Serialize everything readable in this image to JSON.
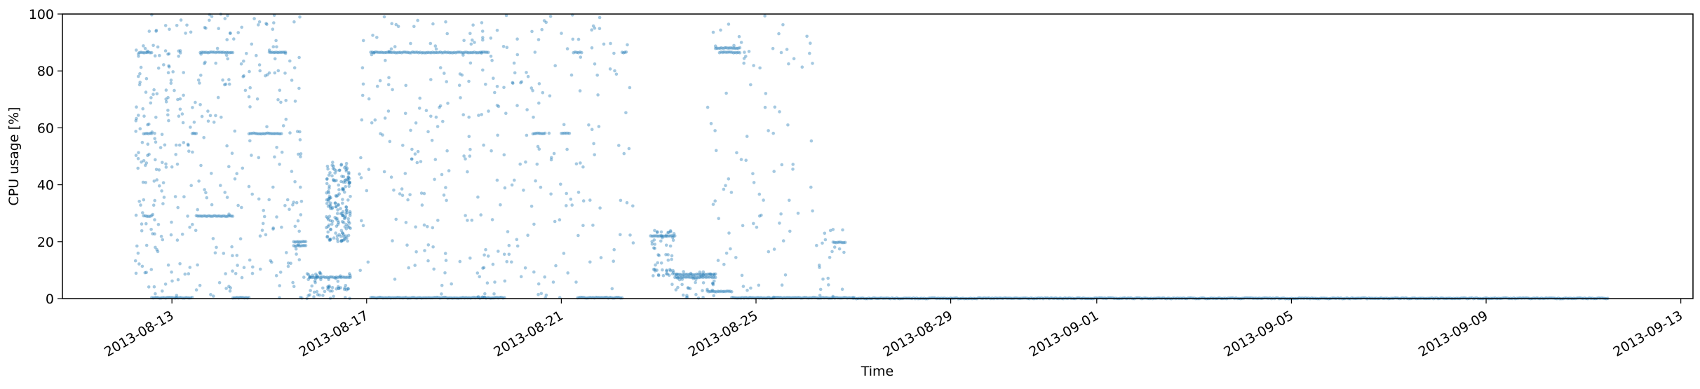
{
  "chart_data": {
    "type": "scatter",
    "title": "",
    "xlabel": "Time",
    "ylabel": "CPU usage [%]",
    "xlim": [
      "2013-08-10T18:00",
      "2013-09-13T06:00"
    ],
    "ylim": [
      0,
      100
    ],
    "x_ticks": [
      "2013-08-13",
      "2013-08-17",
      "2013-08-21",
      "2013-08-25",
      "2013-08-29",
      "2013-09-01",
      "2013-09-05",
      "2013-09-09",
      "2013-09-13"
    ],
    "y_ticks": [
      0,
      20,
      40,
      60,
      80,
      100
    ],
    "grid": false,
    "legend": "none",
    "marker_color": "#1f77b4",
    "marker_alpha": 0.4,
    "bands": [
      {
        "start": "2013-08-12T08:00",
        "end": "2013-08-12T14:00",
        "y": 86.5
      },
      {
        "start": "2013-08-12T10:00",
        "end": "2013-08-12T14:00",
        "y": 58
      },
      {
        "start": "2013-08-12T10:00",
        "end": "2013-08-12T14:00",
        "y": 29
      },
      {
        "start": "2013-08-12T14:00",
        "end": "2013-08-13T10:00",
        "y": 0.3
      },
      {
        "start": "2013-08-13T10:00",
        "end": "2013-08-13T12:00",
        "y": 58
      },
      {
        "start": "2013-08-13T14:00",
        "end": "2013-08-14T06:00",
        "y": 86.5
      },
      {
        "start": "2013-08-13T12:00",
        "end": "2013-08-14T06:00",
        "y": 29
      },
      {
        "start": "2013-08-14T06:00",
        "end": "2013-08-14T14:00",
        "y": 0.3
      },
      {
        "start": "2013-08-14T14:00",
        "end": "2013-08-15T06:00",
        "y": 58
      },
      {
        "start": "2013-08-15T00:00",
        "end": "2013-08-15T08:00",
        "y": 86.5
      },
      {
        "start": "2013-08-15T12:00",
        "end": "2013-08-15T18:00",
        "y": 20
      },
      {
        "start": "2013-08-15T12:00",
        "end": "2013-08-15T18:00",
        "y": 18.5
      },
      {
        "start": "2013-08-15T20:00",
        "end": "2013-08-16T16:00",
        "y": 7.5
      },
      {
        "start": "2013-08-17T02:00",
        "end": "2013-08-19T12:00",
        "y": 86.5
      },
      {
        "start": "2013-08-17T02:00",
        "end": "2013-08-19T20:00",
        "y": 0.3
      },
      {
        "start": "2013-08-20T10:00",
        "end": "2013-08-20T16:00",
        "y": 58
      },
      {
        "start": "2013-08-21T00:00",
        "end": "2013-08-21T04:00",
        "y": 58
      },
      {
        "start": "2013-08-21T06:00",
        "end": "2013-08-21T10:00",
        "y": 86.5
      },
      {
        "start": "2013-08-21T08:00",
        "end": "2013-08-22T06:00",
        "y": 0.3
      },
      {
        "start": "2013-08-22T06:00",
        "end": "2013-08-22T08:00",
        "y": 86.5
      },
      {
        "start": "2013-08-22T20:00",
        "end": "2013-08-23T08:00",
        "y": 22
      },
      {
        "start": "2013-08-23T08:00",
        "end": "2013-08-24T04:00",
        "y": 8.5
      },
      {
        "start": "2013-08-23T08:00",
        "end": "2013-08-24T04:00",
        "y": 7.5
      },
      {
        "start": "2013-08-24T04:00",
        "end": "2013-08-24T16:00",
        "y": 88
      },
      {
        "start": "2013-08-24T06:00",
        "end": "2013-08-24T16:00",
        "y": 86.5
      },
      {
        "start": "2013-08-24T00:00",
        "end": "2013-08-24T12:00",
        "y": 2.5
      },
      {
        "start": "2013-08-24T12:00",
        "end": "2013-08-27T00:00",
        "y": 0.3
      },
      {
        "start": "2013-08-26T14:00",
        "end": "2013-08-26T20:00",
        "y": 19.8
      },
      {
        "start": "2013-08-27T00:00",
        "end": "2013-09-11T12:00",
        "y": 0.1
      }
    ],
    "clusters": [
      {
        "start": "2013-08-16T04:00",
        "end": "2013-08-16T16:00",
        "ymin": 20,
        "ymax": 48,
        "count": 170
      },
      {
        "start": "2013-08-15T16:00",
        "end": "2013-08-16T16:00",
        "ymin": 0,
        "ymax": 10,
        "count": 60
      },
      {
        "start": "2013-08-22T20:00",
        "end": "2013-08-23T08:00",
        "ymin": 8,
        "ymax": 24,
        "count": 50
      },
      {
        "start": "2013-08-23T06:00",
        "end": "2013-08-24T04:00",
        "ymin": 0,
        "ymax": 10,
        "count": 40
      },
      {
        "start": "2013-08-12T06:00",
        "end": "2013-08-13T00:00",
        "ymin": 0,
        "ymax": 100,
        "count": 130
      },
      {
        "start": "2013-08-13T00:00",
        "end": "2013-08-14T12:00",
        "ymin": 0,
        "ymax": 100,
        "count": 140
      },
      {
        "start": "2013-08-14T12:00",
        "end": "2013-08-15T16:00",
        "ymin": 0,
        "ymax": 100,
        "count": 110
      },
      {
        "start": "2013-08-16T20:00",
        "end": "2013-08-19T12:00",
        "ymin": 0,
        "ymax": 100,
        "count": 170
      },
      {
        "start": "2013-08-19T12:00",
        "end": "2013-08-21T12:00",
        "ymin": 0,
        "ymax": 100,
        "count": 120
      },
      {
        "start": "2013-08-21T12:00",
        "end": "2013-08-22T12:00",
        "ymin": 0,
        "ymax": 100,
        "count": 40
      },
      {
        "start": "2013-08-24T00:00",
        "end": "2013-08-26T06:00",
        "ymin": 0,
        "ymax": 100,
        "count": 90
      },
      {
        "start": "2013-08-26T06:00",
        "end": "2013-08-26T20:00",
        "ymin": 0,
        "ymax": 25,
        "count": 20
      }
    ]
  }
}
